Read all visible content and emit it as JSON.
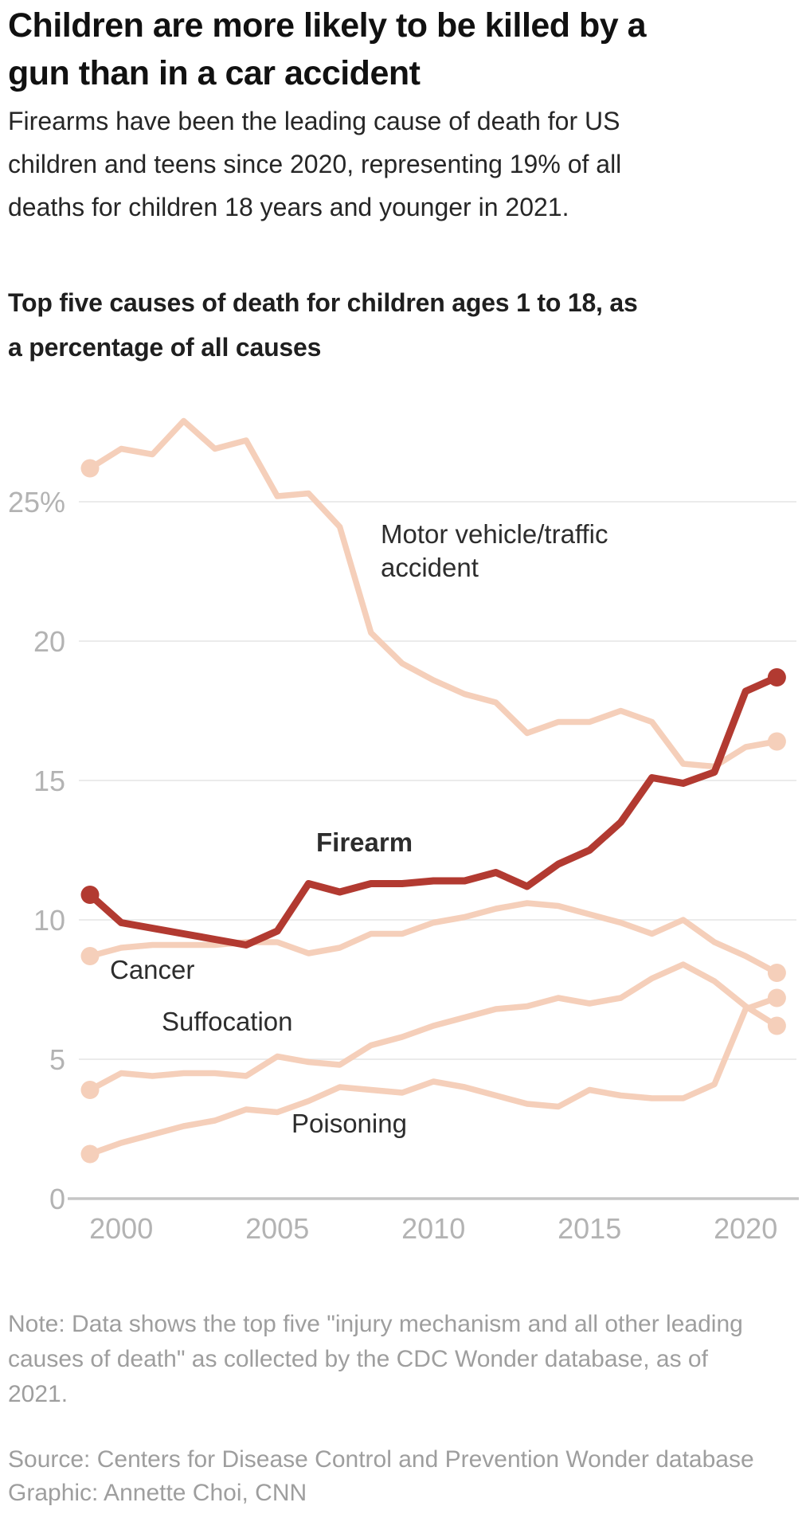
{
  "header": {
    "title_lines": [
      "Children are more likely to be killed by a",
      "gun than in a car accident"
    ],
    "description_lines": [
      "Firearms have been the leading cause of death for US",
      "children and teens since 2020, representing 19% of all",
      "deaths for children 18 years and younger in 2021."
    ]
  },
  "chart": {
    "heading_lines": [
      "Top five causes of death for children ages 1 to 18, as",
      "a percentage of all causes"
    ],
    "annotations": {
      "motor_line1": "Motor vehicle/traffic",
      "motor_line2": "accident",
      "firearm": "Firearm",
      "cancer": "Cancer",
      "suffocation": "Suffocation",
      "poisoning": "Poisoning"
    }
  },
  "chart_data": {
    "type": "line",
    "x": [
      1999,
      2000,
      2001,
      2002,
      2003,
      2004,
      2005,
      2006,
      2007,
      2008,
      2009,
      2010,
      2011,
      2012,
      2013,
      2014,
      2015,
      2016,
      2017,
      2018,
      2019,
      2020,
      2021
    ],
    "x_ticks": [
      2000,
      2005,
      2010,
      2015,
      2020
    ],
    "y_ticks": [
      "25%",
      "20",
      "15",
      "10",
      "5",
      "0"
    ],
    "y_tick_values": [
      25,
      20,
      15,
      10,
      5,
      0
    ],
    "ylim": [
      0,
      28.5
    ],
    "xlabel": "",
    "ylabel": "",
    "grid": true,
    "legend_position": "inline-annotations",
    "series": [
      {
        "name": "Motor vehicle/traffic accident",
        "color": "#f5cfba",
        "values": [
          26.2,
          26.9,
          26.7,
          27.9,
          26.9,
          27.2,
          25.2,
          25.3,
          24.1,
          20.3,
          19.2,
          18.6,
          18.1,
          17.8,
          16.7,
          17.1,
          17.1,
          17.5,
          17.1,
          15.6,
          15.5,
          16.2,
          16.4
        ]
      },
      {
        "name": "Cancer",
        "color": "#f5cfba",
        "values": [
          8.7,
          9.0,
          9.1,
          9.1,
          9.1,
          9.2,
          9.2,
          8.8,
          9.0,
          9.5,
          9.5,
          9.9,
          10.1,
          10.4,
          10.6,
          10.5,
          10.2,
          9.9,
          9.5,
          10.0,
          9.2,
          8.7,
          8.1
        ]
      },
      {
        "name": "Suffocation",
        "color": "#f5cfba",
        "values": [
          3.9,
          4.5,
          4.4,
          4.5,
          4.5,
          4.4,
          5.1,
          4.9,
          4.8,
          5.5,
          5.8,
          6.2,
          6.5,
          6.8,
          6.9,
          7.2,
          7.0,
          7.2,
          7.9,
          8.4,
          7.8,
          6.9,
          6.2
        ]
      },
      {
        "name": "Poisoning",
        "color": "#f5cfba",
        "values": [
          1.6,
          2.0,
          2.3,
          2.6,
          2.8,
          3.2,
          3.1,
          3.5,
          4.0,
          3.9,
          3.8,
          4.2,
          4.0,
          3.7,
          3.4,
          3.3,
          3.9,
          3.7,
          3.6,
          3.6,
          4.1,
          6.8,
          7.2
        ]
      },
      {
        "name": "Firearm",
        "color": "#b23a31",
        "values": [
          10.9,
          9.9,
          9.7,
          9.5,
          9.3,
          9.1,
          9.6,
          11.3,
          11.0,
          11.3,
          11.3,
          11.4,
          11.4,
          11.7,
          11.2,
          12.0,
          12.5,
          13.5,
          15.1,
          14.9,
          15.3,
          18.2,
          18.7
        ]
      }
    ]
  },
  "footer": {
    "note_lines": [
      "Note: Data shows the top five \"injury mechanism and all other leading",
      "causes of death\" as collected by the CDC Wonder database, as of",
      "2021."
    ],
    "source": "Source: Centers for Disease Control and Prevention Wonder database",
    "graphic": "Graphic: Annette Choi, CNN"
  },
  "colors": {
    "firearm_accent": "#b23a31",
    "light_series": "#f5cfba",
    "gridline": "#ebebeb",
    "baseline": "#c6c6c6",
    "tick_text": "#b3b3b3",
    "note_text": "#9e9e9e",
    "title_text": "#111111"
  }
}
